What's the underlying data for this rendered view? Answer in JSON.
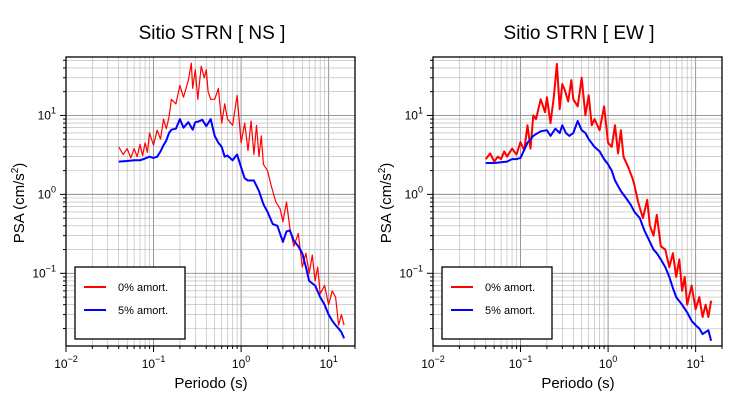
{
  "chart_data": [
    {
      "type": "line",
      "title": "Sitio STRN [ NS ]",
      "xlabel": "Periodo (s)",
      "ylabel_text": "PSA (cm/s",
      "ylabel_sup": "2",
      "ylabel_close": ")",
      "x_scale": "log",
      "y_scale": "log",
      "xlim": [
        0.01,
        20
      ],
      "ylim": [
        0.012,
        55
      ],
      "grid": true,
      "legend_position": "bottom-left",
      "x_ticks": [
        {
          "value": 0.01,
          "base": "10",
          "exp": "−2"
        },
        {
          "value": 0.1,
          "base": "10",
          "exp": "−1"
        },
        {
          "value": 1,
          "base": "10",
          "exp": "0"
        },
        {
          "value": 10,
          "base": "10",
          "exp": "1"
        }
      ],
      "y_ticks": [
        {
          "value": 0.1,
          "base": "10",
          "exp": "−1"
        },
        {
          "value": 1,
          "base": "10",
          "exp": "0"
        },
        {
          "value": 10,
          "base": "10",
          "exp": "1"
        }
      ],
      "series": [
        {
          "name": "0% amort.",
          "color": "#ff0000",
          "width": 1.2,
          "x": [
            0.04,
            0.045,
            0.05,
            0.055,
            0.06,
            0.065,
            0.07,
            0.075,
            0.08,
            0.085,
            0.09,
            0.1,
            0.11,
            0.12,
            0.13,
            0.14,
            0.15,
            0.16,
            0.18,
            0.2,
            0.22,
            0.25,
            0.27,
            0.28,
            0.3,
            0.32,
            0.35,
            0.38,
            0.4,
            0.42,
            0.45,
            0.5,
            0.55,
            0.6,
            0.65,
            0.7,
            0.8,
            0.9,
            1.0,
            1.1,
            1.2,
            1.3,
            1.4,
            1.5,
            1.6,
            1.7,
            1.8,
            2.0,
            2.2,
            2.5,
            2.8,
            3.0,
            3.3,
            3.6,
            4.0,
            4.5,
            5.0,
            5.5,
            6.0,
            6.5,
            7.0,
            7.5,
            8.0,
            9.0,
            10,
            11,
            12,
            13,
            14,
            15
          ],
          "y": [
            4.0,
            3.2,
            3.8,
            2.9,
            3.8,
            3.0,
            4.3,
            3.1,
            4.5,
            3.4,
            6.0,
            4.2,
            6.5,
            5.0,
            9.0,
            6.8,
            9.5,
            16,
            14,
            24,
            17,
            28,
            46,
            22,
            38,
            16,
            42,
            30,
            38,
            20,
            16,
            16,
            22,
            8.0,
            14,
            9,
            7.5,
            18,
            4.5,
            8,
            3.6,
            8.5,
            3.2,
            7.5,
            3.0,
            5.5,
            2.4,
            2.0,
            1.3,
            0.8,
            0.65,
            0.45,
            0.8,
            0.38,
            0.22,
            0.32,
            0.12,
            0.18,
            0.1,
            0.17,
            0.08,
            0.12,
            0.055,
            0.07,
            0.04,
            0.06,
            0.05,
            0.022,
            0.03,
            0.022
          ]
        },
        {
          "name": "5% amort.",
          "color": "#0000ff",
          "width": 2.0,
          "x": [
            0.04,
            0.05,
            0.06,
            0.07,
            0.08,
            0.09,
            0.1,
            0.11,
            0.12,
            0.13,
            0.14,
            0.15,
            0.16,
            0.18,
            0.2,
            0.22,
            0.25,
            0.28,
            0.3,
            0.33,
            0.36,
            0.4,
            0.45,
            0.5,
            0.55,
            0.6,
            0.65,
            0.7,
            0.8,
            0.9,
            1.0,
            1.1,
            1.2,
            1.4,
            1.6,
            1.8,
            2.0,
            2.3,
            2.6,
            3.0,
            3.3,
            3.6,
            4.0,
            4.5,
            5.0,
            5.5,
            6.0,
            7.0,
            8.0,
            9.0,
            10,
            11,
            12,
            13,
            14,
            15
          ],
          "y": [
            2.6,
            2.65,
            2.7,
            2.7,
            2.85,
            3.0,
            2.9,
            3.0,
            3.5,
            4.2,
            4.8,
            6.0,
            6.6,
            6.8,
            9.0,
            7.0,
            8.2,
            6.6,
            8.2,
            8.4,
            8.8,
            7.3,
            9.0,
            5.5,
            4.5,
            4.0,
            3.0,
            3.1,
            2.7,
            3.2,
            2.2,
            1.6,
            1.5,
            1.5,
            1.1,
            0.75,
            0.6,
            0.42,
            0.4,
            0.25,
            0.34,
            0.35,
            0.26,
            0.22,
            0.18,
            0.12,
            0.08,
            0.07,
            0.05,
            0.04,
            0.03,
            0.025,
            0.022,
            0.02,
            0.018,
            0.015
          ]
        }
      ]
    },
    {
      "type": "line",
      "title": "Sitio STRN [ EW ]",
      "xlabel": "Periodo (s)",
      "ylabel_text": "PSA (cm/s",
      "ylabel_sup": "2",
      "ylabel_close": ")",
      "x_scale": "log",
      "y_scale": "log",
      "xlim": [
        0.01,
        20
      ],
      "ylim": [
        0.012,
        55
      ],
      "grid": true,
      "legend_position": "bottom-left",
      "x_ticks": [
        {
          "value": 0.01,
          "base": "10",
          "exp": "−2"
        },
        {
          "value": 0.1,
          "base": "10",
          "exp": "−1"
        },
        {
          "value": 1,
          "base": "10",
          "exp": "0"
        },
        {
          "value": 10,
          "base": "10",
          "exp": "1"
        }
      ],
      "y_ticks": [
        {
          "value": 0.1,
          "base": "10",
          "exp": "−1"
        },
        {
          "value": 1,
          "base": "10",
          "exp": "0"
        },
        {
          "value": 10,
          "base": "10",
          "exp": "1"
        }
      ],
      "series": [
        {
          "name": "0% amort.",
          "color": "#ff0000",
          "width": 2.0,
          "x": [
            0.04,
            0.045,
            0.05,
            0.055,
            0.06,
            0.065,
            0.07,
            0.08,
            0.09,
            0.1,
            0.11,
            0.12,
            0.13,
            0.14,
            0.15,
            0.17,
            0.19,
            0.2,
            0.22,
            0.24,
            0.26,
            0.28,
            0.3,
            0.32,
            0.35,
            0.38,
            0.4,
            0.45,
            0.5,
            0.55,
            0.6,
            0.65,
            0.7,
            0.8,
            0.9,
            1.0,
            1.1,
            1.2,
            1.3,
            1.4,
            1.5,
            1.7,
            1.9,
            2.0,
            2.2,
            2.5,
            2.8,
            3.0,
            3.3,
            3.6,
            4.0,
            4.5,
            5.0,
            5.5,
            6.0,
            6.5,
            7.0,
            7.5,
            8.0,
            9.0,
            10,
            11,
            12,
            13,
            14,
            15
          ],
          "y": [
            2.8,
            3.3,
            2.6,
            3.0,
            2.8,
            3.5,
            3.0,
            3.8,
            3.2,
            4.6,
            3.6,
            7.5,
            3.8,
            10,
            9,
            16,
            11,
            17,
            8,
            17,
            45,
            12,
            25,
            21,
            15,
            28,
            16,
            13,
            30,
            10,
            18,
            7.5,
            9,
            6.5,
            13,
            4.5,
            4.0,
            7.5,
            3.3,
            6.5,
            3.0,
            2.2,
            1.6,
            1.3,
            0.8,
            0.5,
            0.85,
            0.4,
            0.3,
            0.55,
            0.22,
            0.2,
            0.12,
            0.18,
            0.09,
            0.15,
            0.06,
            0.09,
            0.04,
            0.07,
            0.035,
            0.05,
            0.028,
            0.04,
            0.028,
            0.045
          ]
        },
        {
          "name": "5% amort.",
          "color": "#0000ff",
          "width": 2.0,
          "x": [
            0.04,
            0.05,
            0.06,
            0.07,
            0.08,
            0.09,
            0.1,
            0.12,
            0.14,
            0.15,
            0.17,
            0.2,
            0.22,
            0.25,
            0.28,
            0.3,
            0.33,
            0.36,
            0.4,
            0.45,
            0.5,
            0.55,
            0.6,
            0.7,
            0.8,
            0.9,
            1.0,
            1.1,
            1.2,
            1.4,
            1.6,
            1.8,
            2.0,
            2.3,
            2.6,
            3.0,
            3.3,
            3.6,
            4.0,
            4.5,
            5.0,
            5.5,
            6.0,
            7.0,
            8.0,
            9.0,
            10,
            11,
            12,
            13,
            14,
            15
          ],
          "y": [
            2.5,
            2.5,
            2.55,
            2.6,
            2.8,
            2.8,
            2.9,
            4.5,
            5.5,
            5.8,
            6.3,
            6.5,
            5.5,
            6.8,
            6.0,
            7.5,
            6.0,
            5.5,
            6.0,
            8.5,
            6.5,
            6.0,
            5.0,
            4.0,
            3.5,
            2.8,
            2.4,
            2.0,
            1.5,
            1.1,
            0.9,
            0.75,
            0.6,
            0.5,
            0.35,
            0.25,
            0.2,
            0.18,
            0.15,
            0.12,
            0.09,
            0.065,
            0.05,
            0.04,
            0.032,
            0.025,
            0.022,
            0.02,
            0.017,
            0.018,
            0.019,
            0.014
          ]
        }
      ]
    }
  ]
}
